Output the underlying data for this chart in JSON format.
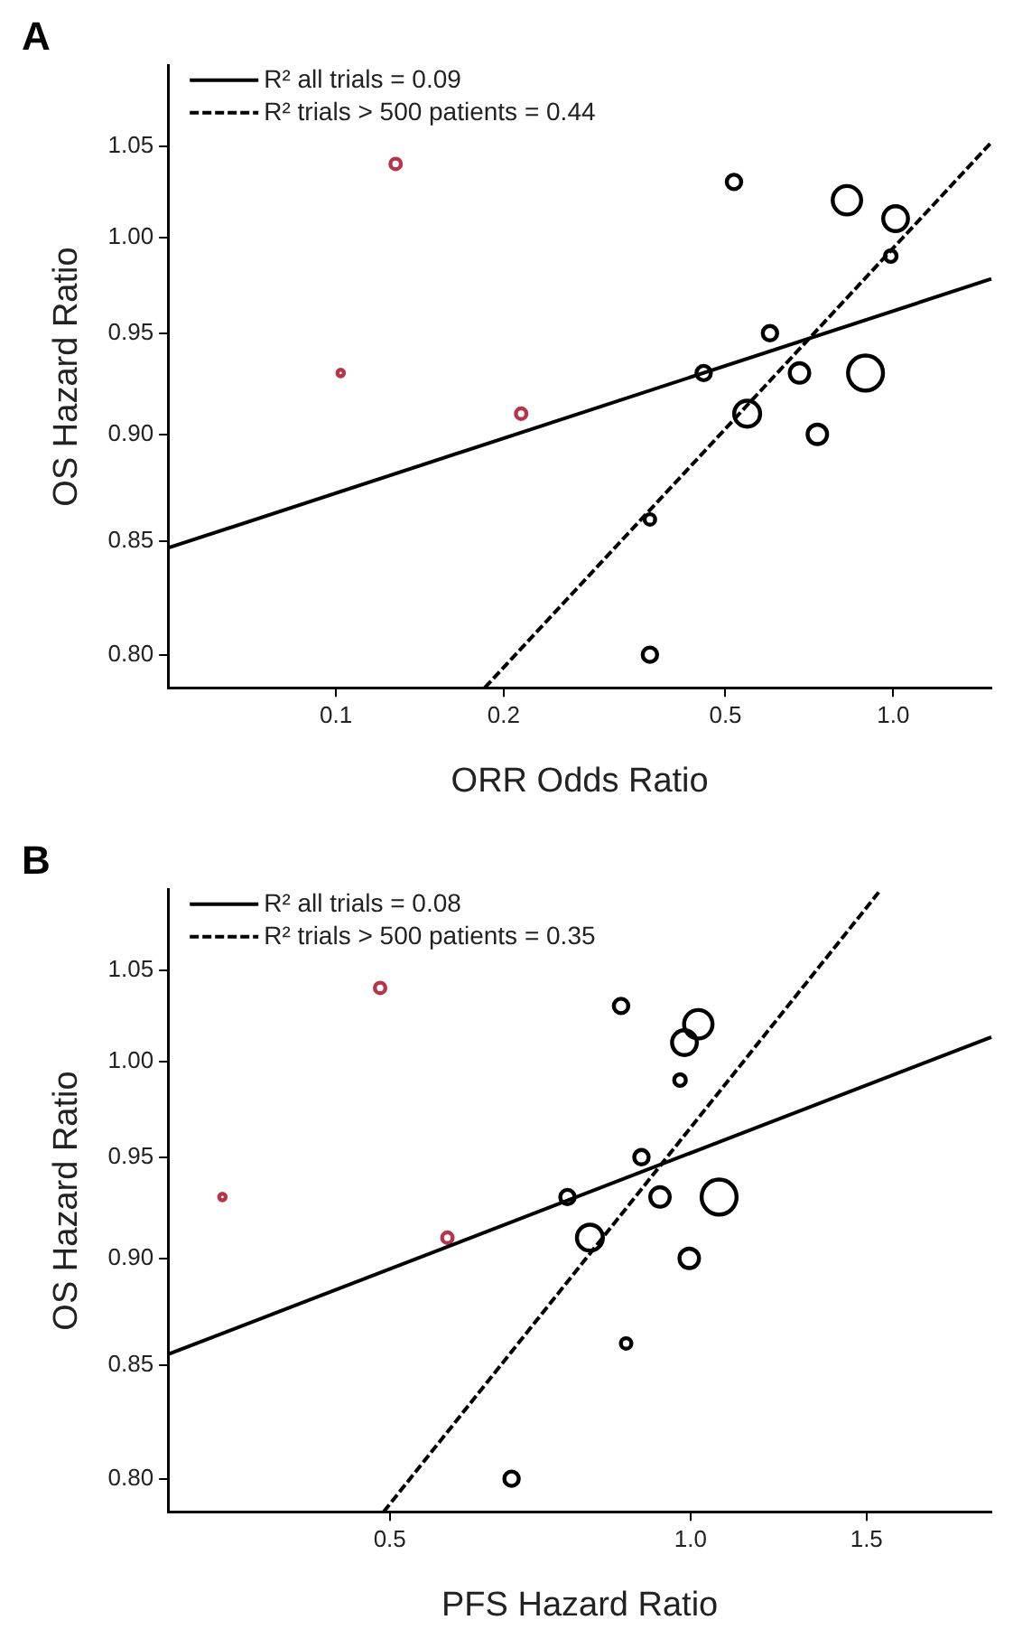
{
  "chart_data": [
    {
      "type": "bubble",
      "title": "A",
      "xlabel": "ORR Odds Ratio",
      "ylabel": "OS Hazard Ratio",
      "log": "xy",
      "grid": false,
      "legend": "top left",
      "xlim": [
        0.05,
        1.5
      ],
      "xticks": [
        0.1,
        0.2,
        0.5,
        {
          "value": 1,
          "label": "1.0"
        }
      ],
      "ylim": [
        0.786,
        1.096
      ],
      "yticks": [
        {
          "value": 0.8,
          "label": "0.80"
        },
        0.85,
        {
          "value": 0.9,
          "label": "0.90"
        },
        0.95,
        {
          "value": 1,
          "label": "1.00"
        },
        1.05
      ],
      "series": [
        {
          "type": "bubble",
          "color": "#b5364b",
          "x": [
            0.128,
            0.102,
            0.215
          ],
          "values": [
            1.04,
            0.93,
            0.91
          ],
          "sizes": [
            0.09,
            0.034,
            0.09
          ]
        },
        {
          "type": "bubble",
          "color": "#000000",
          "x": [
            0.518,
            0.826,
            1.01,
            0.99,
            0.601,
            0.457,
            0.679,
            0.892,
            0.547,
            0.731,
            0.366,
            0.366
          ],
          "values": [
            1.03,
            1.02,
            1.01,
            0.99,
            0.95,
            0.93,
            0.93,
            0.93,
            0.91,
            0.9,
            0.86,
            0.8
          ],
          "sizes": [
            0.17,
            0.66,
            0.5,
            0.11,
            0.17,
            0.17,
            0.31,
            1,
            0.55,
            0.31,
            0.09,
            0.17
          ]
        },
        {
          "type": "line",
          "name": "R² all trials = 0.09",
          "color": "#000000",
          "line_style": "solid",
          "x": [
            0.05,
            1.5
          ],
          "values": [
            0.847,
            0.978
          ]
        },
        {
          "type": "line",
          "name": "R² trials > 500 patients = 0.44",
          "color": "#000000",
          "line_style": "dashed",
          "x": [
            0.185,
            1.5
          ],
          "values": [
            0.786,
            1.052
          ]
        }
      ]
    },
    {
      "type": "bubble",
      "title": "B",
      "xlabel": "PFS Hazard Ratio",
      "ylabel": "OS Hazard Ratio",
      "log": "xy",
      "grid": false,
      "legend": "top left",
      "xlim": [
        0.3,
        2
      ],
      "xticks": [
        0.5,
        {
          "value": 1,
          "label": "1.0"
        },
        1.5
      ],
      "ylim": [
        0.786,
        1.096
      ],
      "yticks": [
        {
          "value": 0.8,
          "label": "0.80"
        },
        0.85,
        {
          "value": 0.9,
          "label": "0.90"
        },
        0.95,
        {
          "value": 1,
          "label": "1.00"
        },
        1.05
      ],
      "series": [
        {
          "type": "bubble",
          "color": "#b5364b",
          "x": [
            0.489,
            0.34,
            0.571
          ],
          "values": [
            1.04,
            0.93,
            0.91
          ],
          "sizes": [
            0.09,
            0.034,
            0.09
          ]
        },
        {
          "type": "bubble",
          "color": "#000000",
          "x": [
            0.852,
            1.018,
            0.986,
            0.976,
            0.893,
            0.753,
            0.932,
            1.068,
            0.793,
            0.997,
            0.862,
            0.662
          ],
          "values": [
            1.03,
            1.02,
            1.01,
            0.99,
            0.95,
            0.93,
            0.93,
            0.93,
            0.91,
            0.9,
            0.86,
            0.8
          ],
          "sizes": [
            0.17,
            0.66,
            0.5,
            0.11,
            0.17,
            0.17,
            0.31,
            1,
            0.55,
            0.31,
            0.09,
            0.17
          ]
        },
        {
          "type": "line",
          "name": "R² all trials = 0.08",
          "color": "#000000",
          "line_style": "solid",
          "x": [
            0.3,
            2
          ],
          "values": [
            0.855,
            1.013
          ]
        },
        {
          "type": "line",
          "name": "R² trials > 500 patients = 0.35",
          "color": "#000000",
          "line_style": "dashed",
          "x": [
            0.493,
            1.55
          ],
          "values": [
            0.786,
            1.096
          ]
        }
      ]
    }
  ]
}
